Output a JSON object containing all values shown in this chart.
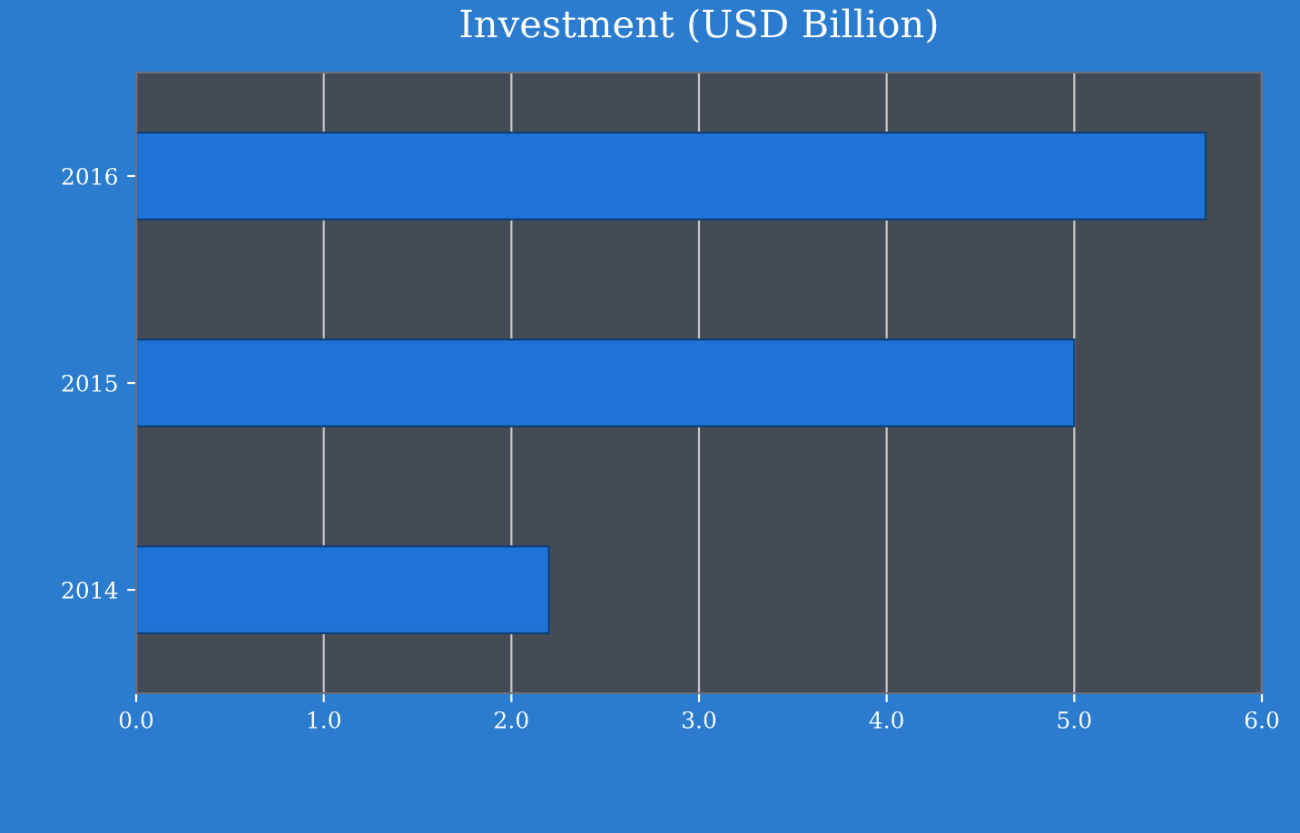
{
  "chart_data": {
    "type": "bar",
    "orientation": "horizontal",
    "title": "Investment (USD Billion)",
    "categories": [
      "2016",
      "2015",
      "2014"
    ],
    "values": [
      5.7,
      5.0,
      2.2
    ],
    "color": "#1e74d6",
    "xlim": [
      0,
      6
    ],
    "xticks": [
      {
        "value": 0,
        "label": "0.0"
      },
      {
        "value": 1,
        "label": "1.0"
      },
      {
        "value": 2,
        "label": "2.0"
      },
      {
        "value": 3,
        "label": "3.0"
      },
      {
        "value": 4,
        "label": "4.0"
      },
      {
        "value": 5,
        "label": "5.0"
      },
      {
        "value": 6,
        "label": "6.0"
      }
    ],
    "grid": "x",
    "legend": false
  }
}
